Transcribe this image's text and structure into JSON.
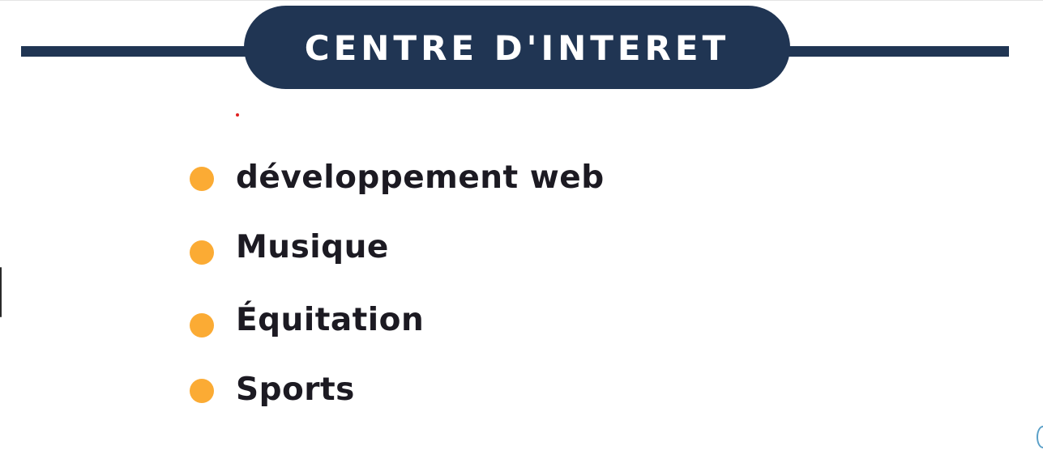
{
  "header": {
    "title": "CENTRE D'INTERET"
  },
  "interests": [
    {
      "label": "développement web",
      "icon": "bullet-dot-icon"
    },
    {
      "label": "Musique",
      "icon": "bullet-dot-icon"
    },
    {
      "label": "Équitation",
      "icon": "bullet-dot-icon"
    },
    {
      "label": "Sports",
      "icon": "bullet-dot-icon"
    }
  ],
  "colors": {
    "header_bg": "#203553",
    "header_text": "#ffffff",
    "bullet": "#fbab34",
    "item_text": "#1c1a22"
  }
}
